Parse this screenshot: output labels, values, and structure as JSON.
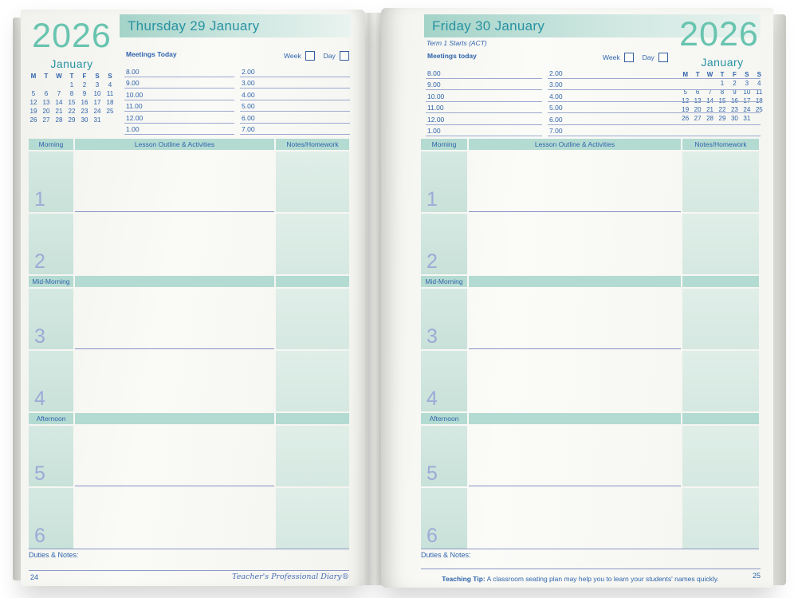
{
  "shared": {
    "year": "2026",
    "month": "January",
    "day_headers": [
      "M",
      "T",
      "W",
      "T",
      "F",
      "S",
      "S"
    ],
    "calendar_cells": [
      "",
      "",
      "",
      "1",
      "2",
      "3",
      "4",
      "5",
      "6",
      "7",
      "8",
      "9",
      "10",
      "11",
      "12",
      "13",
      "14",
      "15",
      "16",
      "17",
      "18",
      "19",
      "20",
      "21",
      "22",
      "23",
      "24",
      "25",
      "26",
      "27",
      "28",
      "29",
      "30",
      "31",
      ""
    ],
    "week_label": "Week",
    "day_label": "Day",
    "times_left": [
      "8.00",
      "9.00",
      "10.00",
      "11.00",
      "12.00",
      "1.00"
    ],
    "times_right": [
      "2.00",
      "3.00",
      "4.00",
      "5.00",
      "6.00",
      "7.00"
    ],
    "grid": {
      "col_morning": "Morning",
      "col_lesson": "Lesson Outline & Activities",
      "col_notes": "Notes/Homework",
      "band_mid_morning": "Mid-Morning",
      "band_afternoon": "Afternoon",
      "periods": [
        "1",
        "2",
        "3",
        "4",
        "5",
        "6"
      ]
    },
    "duties_label": "Duties & Notes:"
  },
  "left_page": {
    "title": "Thursday 29 January",
    "meetings_label": "Meetings Today",
    "page_number": "24",
    "brand": "Teacher's Professional Diary®"
  },
  "right_page": {
    "title": "Friday 30 January",
    "subtitle": "Term 1 Starts (ACT)",
    "meetings_label": "Meetings today",
    "page_number": "25",
    "tip_bold": "Teaching Tip:",
    "tip_text": " A classroom seating plan may help you to learn your students' names quickly."
  },
  "colors": {
    "year_mint": "#68c4af",
    "heading_teal": "#2793a2",
    "text_blue": "#2f64ab",
    "period_number_blue": "#9aabd7",
    "band_bg": "#b4dbd2",
    "period_col_bg": "#cde5dd",
    "notes_col_bg": "#dbebe5"
  }
}
